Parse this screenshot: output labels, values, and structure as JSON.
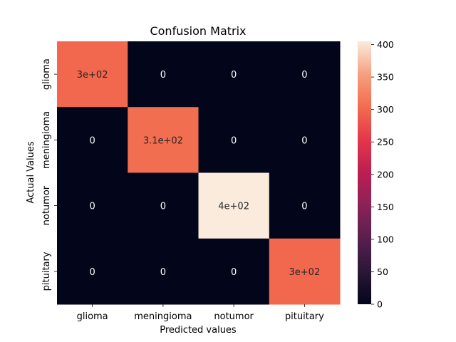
{
  "chart_data": {
    "type": "heatmap",
    "title": "Confusion Matrix",
    "xlabel": "Predicted values",
    "ylabel": "Actual Values",
    "x_categories": [
      "glioma",
      "meningioma",
      "notumor",
      "pituitary"
    ],
    "y_categories": [
      "glioma",
      "meningioma",
      "notumor",
      "pituitary"
    ],
    "values": [
      [
        300,
        0,
        0,
        0
      ],
      [
        0,
        306,
        0,
        0
      ],
      [
        0,
        0,
        405,
        0
      ],
      [
        0,
        0,
        0,
        300
      ]
    ],
    "cell_labels": [
      [
        "3e+02",
        "0",
        "0",
        "0"
      ],
      [
        "0",
        "3.1e+02",
        "0",
        "0"
      ],
      [
        "0",
        "0",
        "4e+02",
        "0"
      ],
      [
        "0",
        "0",
        "0",
        "3e+02"
      ]
    ],
    "colorbar": {
      "colormap": "rocket",
      "range": [
        0,
        405
      ],
      "ticks": [
        0,
        50,
        100,
        150,
        200,
        250,
        300,
        350,
        400
      ]
    },
    "grid": false,
    "legend": "colorbar-right"
  }
}
